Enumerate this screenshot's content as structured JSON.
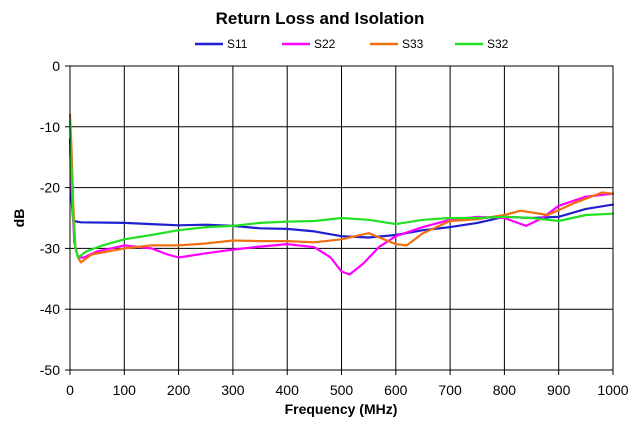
{
  "chart_data": {
    "type": "line",
    "title": "Return Loss and Isolation",
    "xlabel": "Frequency (MHz)",
    "ylabel": "dB",
    "xlim": [
      0,
      1000
    ],
    "ylim": [
      -50,
      0
    ],
    "x_ticks": [
      0,
      100,
      200,
      300,
      400,
      500,
      600,
      700,
      800,
      900,
      1000
    ],
    "y_ticks": [
      0,
      -10,
      -20,
      -30,
      -40,
      -50
    ],
    "x_tick_labels": [
      "0",
      "100",
      "200",
      "300",
      "400",
      "500",
      "600",
      "700",
      "800",
      "900",
      "1000"
    ],
    "y_tick_labels": [
      "0",
      "-10",
      "-20",
      "-30",
      "-40",
      "-50"
    ],
    "grid": true,
    "legend_position": "top",
    "series": [
      {
        "name": "S11",
        "color": "#1f1fd0",
        "points": [
          [
            0,
            -12
          ],
          [
            3,
            -22
          ],
          [
            6,
            -25.5
          ],
          [
            20,
            -25.7
          ],
          [
            100,
            -25.8
          ],
          [
            150,
            -26
          ],
          [
            200,
            -26.2
          ],
          [
            250,
            -26.1
          ],
          [
            300,
            -26.3
          ],
          [
            350,
            -26.7
          ],
          [
            400,
            -26.8
          ],
          [
            450,
            -27.2
          ],
          [
            500,
            -28
          ],
          [
            550,
            -28.2
          ],
          [
            600,
            -27.8
          ],
          [
            650,
            -27
          ],
          [
            700,
            -26.5
          ],
          [
            750,
            -25.8
          ],
          [
            800,
            -24.8
          ],
          [
            850,
            -25
          ],
          [
            900,
            -24.8
          ],
          [
            950,
            -23.5
          ],
          [
            1000,
            -22.8
          ]
        ]
      },
      {
        "name": "S22",
        "color": "#ff00ff",
        "points": [
          [
            0,
            -13
          ],
          [
            4,
            -22
          ],
          [
            8,
            -29
          ],
          [
            15,
            -31.5
          ],
          [
            25,
            -31.5
          ],
          [
            50,
            -30.5
          ],
          [
            100,
            -29.5
          ],
          [
            150,
            -30
          ],
          [
            180,
            -31
          ],
          [
            200,
            -31.5
          ],
          [
            250,
            -30.8
          ],
          [
            300,
            -30.2
          ],
          [
            350,
            -29.7
          ],
          [
            400,
            -29.3
          ],
          [
            450,
            -29.8
          ],
          [
            480,
            -31.5
          ],
          [
            500,
            -33.8
          ],
          [
            515,
            -34.3
          ],
          [
            540,
            -32.5
          ],
          [
            570,
            -29.7
          ],
          [
            600,
            -28
          ],
          [
            650,
            -26.5
          ],
          [
            700,
            -25.3
          ],
          [
            750,
            -24.8
          ],
          [
            800,
            -25
          ],
          [
            840,
            -26.3
          ],
          [
            870,
            -25
          ],
          [
            900,
            -23
          ],
          [
            950,
            -21.5
          ],
          [
            1000,
            -21
          ]
        ]
      },
      {
        "name": "S33",
        "color": "#f07010",
        "points": [
          [
            0,
            -8
          ],
          [
            3,
            -14
          ],
          [
            6,
            -23
          ],
          [
            10,
            -30
          ],
          [
            15,
            -31.5
          ],
          [
            20,
            -32.3
          ],
          [
            40,
            -31
          ],
          [
            100,
            -30
          ],
          [
            150,
            -29.5
          ],
          [
            200,
            -29.5
          ],
          [
            250,
            -29.2
          ],
          [
            300,
            -28.7
          ],
          [
            350,
            -28.8
          ],
          [
            400,
            -28.8
          ],
          [
            450,
            -29
          ],
          [
            500,
            -28.5
          ],
          [
            550,
            -27.5
          ],
          [
            600,
            -29.3
          ],
          [
            620,
            -29.5
          ],
          [
            650,
            -27.5
          ],
          [
            700,
            -25.5
          ],
          [
            750,
            -25.2
          ],
          [
            800,
            -24.5
          ],
          [
            830,
            -23.8
          ],
          [
            880,
            -24.5
          ],
          [
            930,
            -22.5
          ],
          [
            980,
            -20.8
          ],
          [
            1000,
            -21
          ]
        ]
      },
      {
        "name": "S32",
        "color": "#22e022",
        "points": [
          [
            0,
            -9
          ],
          [
            3,
            -18
          ],
          [
            6,
            -25
          ],
          [
            10,
            -30
          ],
          [
            15,
            -31.5
          ],
          [
            30,
            -30.5
          ],
          [
            60,
            -29.5
          ],
          [
            100,
            -28.5
          ],
          [
            150,
            -27.8
          ],
          [
            200,
            -27
          ],
          [
            250,
            -26.5
          ],
          [
            300,
            -26.3
          ],
          [
            350,
            -25.8
          ],
          [
            400,
            -25.6
          ],
          [
            450,
            -25.5
          ],
          [
            500,
            -25
          ],
          [
            550,
            -25.3
          ],
          [
            600,
            -26
          ],
          [
            650,
            -25.3
          ],
          [
            700,
            -25
          ],
          [
            750,
            -25
          ],
          [
            800,
            -24.8
          ],
          [
            850,
            -25
          ],
          [
            900,
            -25.5
          ],
          [
            950,
            -24.5
          ],
          [
            1000,
            -24.3
          ]
        ]
      }
    ]
  }
}
